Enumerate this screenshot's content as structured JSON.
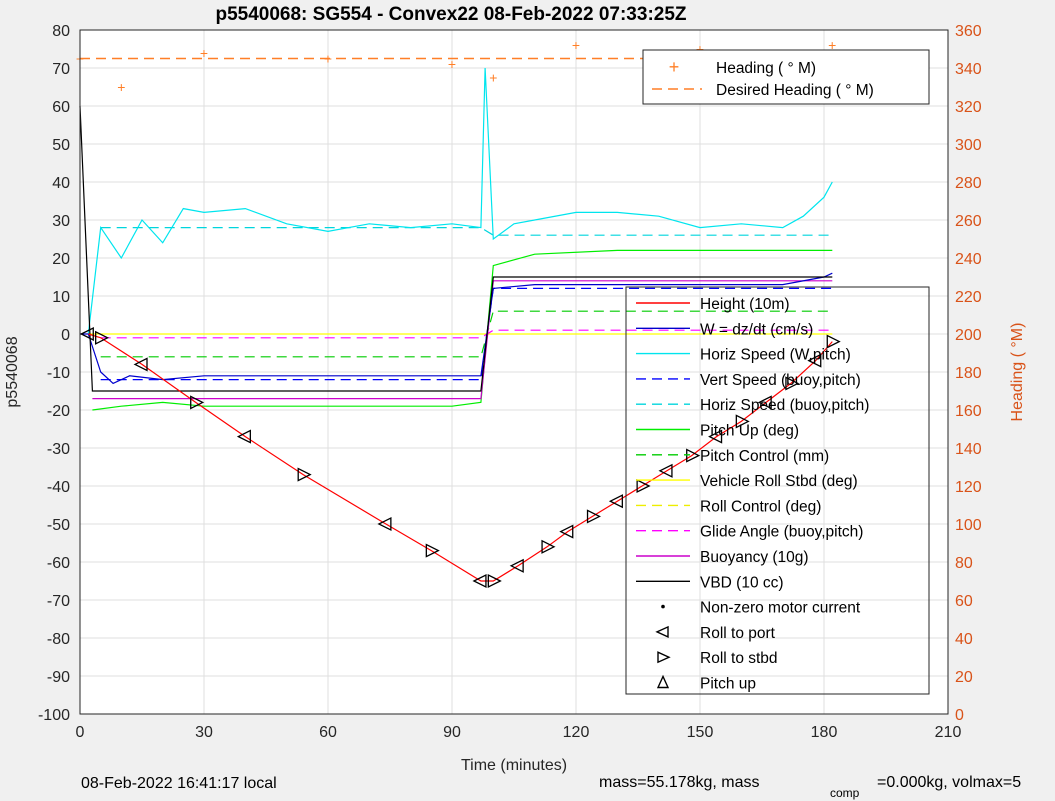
{
  "figure": {
    "title": "p5540068: SG554 - Convex22 08-Feb-2022 07:33:25Z",
    "footer_left": "08-Feb-2022 16:41:17 local",
    "footer_right_a": "mass=55.178kg, mass",
    "footer_right_sub": "comp",
    "footer_right_b": "=0.000kg, volmax=5",
    "colors": {
      "background": "#f0f0f0",
      "axes_bg": "#ffffff",
      "grid": "#dfdfdf",
      "right_axis": "#d95319",
      "heading": "#ff7f27"
    }
  },
  "chart_data": {
    "type": "line",
    "xlabel": "Time (minutes)",
    "ylabel_left": "p5540068",
    "ylabel_right": "Heading ( °M)",
    "xlim": [
      0,
      210
    ],
    "ylim_left": [
      -100,
      80
    ],
    "ylim_right": [
      0,
      360
    ],
    "xticks": [
      "0",
      "30",
      "60",
      "90",
      "120",
      "150",
      "180",
      "210"
    ],
    "yticks_left": [
      "80",
      "70",
      "60",
      "50",
      "40",
      "30",
      "20",
      "10",
      "0",
      "-10",
      "-20",
      "-30",
      "-40",
      "-50",
      "-60",
      "-70",
      "-80",
      "-90",
      "-100"
    ],
    "yticks_right": [
      "360",
      "340",
      "320",
      "300",
      "280",
      "260",
      "240",
      "220",
      "200",
      "180",
      "160",
      "140",
      "120",
      "100",
      "80",
      "60",
      "40",
      "20",
      "0"
    ],
    "grid": true,
    "heading_legend_position": "top-right",
    "main_legend_position": "right",
    "heading_legend": [
      {
        "label": "Heading ( ° M)",
        "color": "#ff7f27",
        "style": "marker-plus"
      },
      {
        "label": "Desired Heading (    ° M)",
        "color": "#ff7f27",
        "style": "dashed"
      }
    ],
    "legend": [
      {
        "label": "Height (10m)",
        "color": "#ff0000",
        "style": "solid"
      },
      {
        "label": "W = dz/dt (cm/s)",
        "color": "#0000cc",
        "style": "solid"
      },
      {
        "label": "Horiz Speed (W,pitch)",
        "color": "#00e5ee",
        "style": "solid"
      },
      {
        "label": "Vert Speed (buoy,pitch)",
        "color": "#0000ff",
        "style": "dashed"
      },
      {
        "label": "Horiz Speed (buoy,pitch)",
        "color": "#00d5dd",
        "style": "dashed"
      },
      {
        "label": "Pitch Up (deg)",
        "color": "#00ee00",
        "style": "solid"
      },
      {
        "label": "Pitch Control (mm)",
        "color": "#00cc00",
        "style": "dashed"
      },
      {
        "label": "Vehicle Roll Stbd (deg)",
        "color": "#ffff00",
        "style": "solid"
      },
      {
        "label": "Roll Control (deg)",
        "color": "#eeee00",
        "style": "dashed"
      },
      {
        "label": "Glide Angle (buoy,pitch)",
        "color": "#ff00ff",
        "style": "dashed"
      },
      {
        "label": "Buoyancy (10g)",
        "color": "#cc00cc",
        "style": "solid"
      },
      {
        "label": "VBD (10 cc)",
        "color": "#000000",
        "style": "solid"
      },
      {
        "label": "Non-zero motor current",
        "color": "#000000",
        "style": "dot"
      },
      {
        "label": "Roll to port",
        "color": "#000000",
        "style": "tri-left"
      },
      {
        "label": "Roll to stbd",
        "color": "#000000",
        "style": "tri-right"
      },
      {
        "label": "Pitch up",
        "color": "#000000",
        "style": "tri-up"
      }
    ],
    "series": [
      {
        "name": "Height (10m)",
        "x": [
          2,
          5,
          15,
          28,
          40,
          54,
          74,
          85,
          97,
          100,
          106,
          113,
          118,
          124,
          130,
          136,
          142,
          148,
          154,
          160,
          166,
          172,
          178,
          182
        ],
        "values": [
          0,
          -1,
          -8,
          -18,
          -27,
          -37,
          -50,
          -57,
          -65,
          -65,
          -61,
          -56,
          -52,
          -48,
          -44,
          -40,
          -36,
          -32,
          -27,
          -23,
          -18,
          -13,
          -7,
          -2
        ]
      },
      {
        "name": "W = dz/dt (cm/s)",
        "x": [
          0,
          2,
          5,
          8,
          12,
          20,
          30,
          60,
          90,
          97,
          100,
          110,
          130,
          150,
          170,
          180,
          182
        ],
        "values": [
          0,
          0,
          -10,
          -13,
          -11,
          -12,
          -11,
          -11,
          -11,
          -11,
          12,
          13,
          13,
          13,
          13,
          15,
          16
        ]
      },
      {
        "name": "Horiz Speed (W,pitch)",
        "x": [
          2,
          5,
          10,
          15,
          20,
          25,
          30,
          40,
          50,
          60,
          70,
          80,
          90,
          97,
          98,
          100,
          105,
          110,
          120,
          130,
          140,
          150,
          160,
          170,
          175,
          180,
          182
        ],
        "values": [
          0,
          28,
          20,
          30,
          24,
          33,
          32,
          33,
          29,
          27,
          29,
          28,
          29,
          28,
          70,
          25,
          29,
          30,
          32,
          32,
          31,
          28,
          29,
          28,
          31,
          36,
          40
        ]
      },
      {
        "name": "Vert Speed (buoy,pitch)",
        "x": [
          5,
          97,
          100,
          182
        ],
        "values": [
          -12,
          -12,
          12,
          12
        ]
      },
      {
        "name": "Horiz Speed (buoy,pitch)",
        "x": [
          5,
          97,
          100,
          182
        ],
        "values": [
          28,
          28,
          26,
          26
        ]
      },
      {
        "name": "Pitch Up (deg)",
        "x": [
          3,
          10,
          20,
          30,
          60,
          90,
          97,
          100,
          110,
          130,
          150,
          170,
          182
        ],
        "values": [
          -20,
          -19,
          -18,
          -19,
          -19,
          -19,
          -18,
          18,
          21,
          22,
          22,
          22,
          22
        ]
      },
      {
        "name": "Pitch Control (mm)",
        "x": [
          5,
          97,
          100,
          182
        ],
        "values": [
          -6,
          -6,
          6,
          6
        ]
      },
      {
        "name": "Vehicle Roll Stbd (deg)",
        "x": [
          2,
          10,
          50,
          97,
          100,
          150,
          182
        ],
        "values": [
          0,
          0,
          0,
          0,
          0,
          0,
          0
        ]
      },
      {
        "name": "Glide Angle (buoy,pitch)",
        "x": [
          5,
          97,
          100,
          182
        ],
        "values": [
          -1,
          -1,
          1,
          1
        ]
      },
      {
        "name": "Buoyancy (10g)",
        "x": [
          3,
          97,
          100,
          182
        ],
        "values": [
          -17,
          -17,
          14,
          14
        ]
      },
      {
        "name": "VBD (10 cc)",
        "x": [
          0,
          3,
          97,
          100,
          182
        ],
        "values": [
          60,
          -15,
          -15,
          15,
          15
        ]
      }
    ],
    "heading_series": {
      "name": "Heading ( ° M)",
      "x": [
        0,
        10,
        30,
        60,
        90,
        100,
        120,
        150,
        182
      ],
      "values": [
        345,
        330,
        348,
        345,
        342,
        335,
        352,
        350,
        352
      ]
    },
    "desired_heading": {
      "name": "Desired Heading (    ° M)",
      "x": [
        0,
        182
      ],
      "values": [
        345,
        345
      ]
    }
  }
}
